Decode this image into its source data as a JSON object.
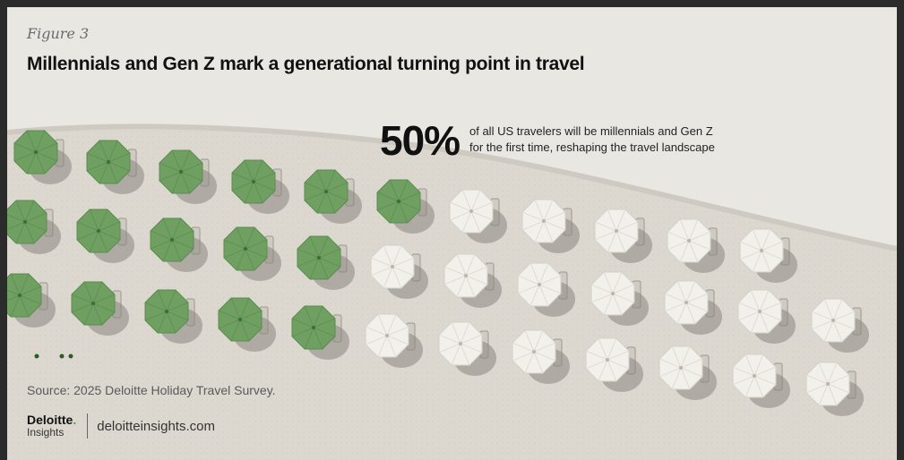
{
  "figure_label": "Figure 3",
  "title": "Millennials and Gen Z mark a generational turning point in travel",
  "stat": {
    "value": "50%",
    "line1": "of all US travelers will be millennials and Gen Z",
    "line2": "for the first time, reshaping the travel landscape"
  },
  "source": "Source: 2025 Deloitte Holiday Travel Survey.",
  "brand": {
    "name": "Deloitte",
    "dot": ".",
    "sub": "Insights",
    "url": "deloitteinsights.com"
  },
  "colors": {
    "green_umbrella": "#6fa062",
    "white_umbrella": "#f2f0ea",
    "sand": "#e6e3dd",
    "shadow": "#8a8680"
  },
  "umbrellas": {
    "total_per_row": 11,
    "green_count_rows": [
      6,
      5,
      5
    ],
    "icon": "beach-umbrella-icon"
  }
}
